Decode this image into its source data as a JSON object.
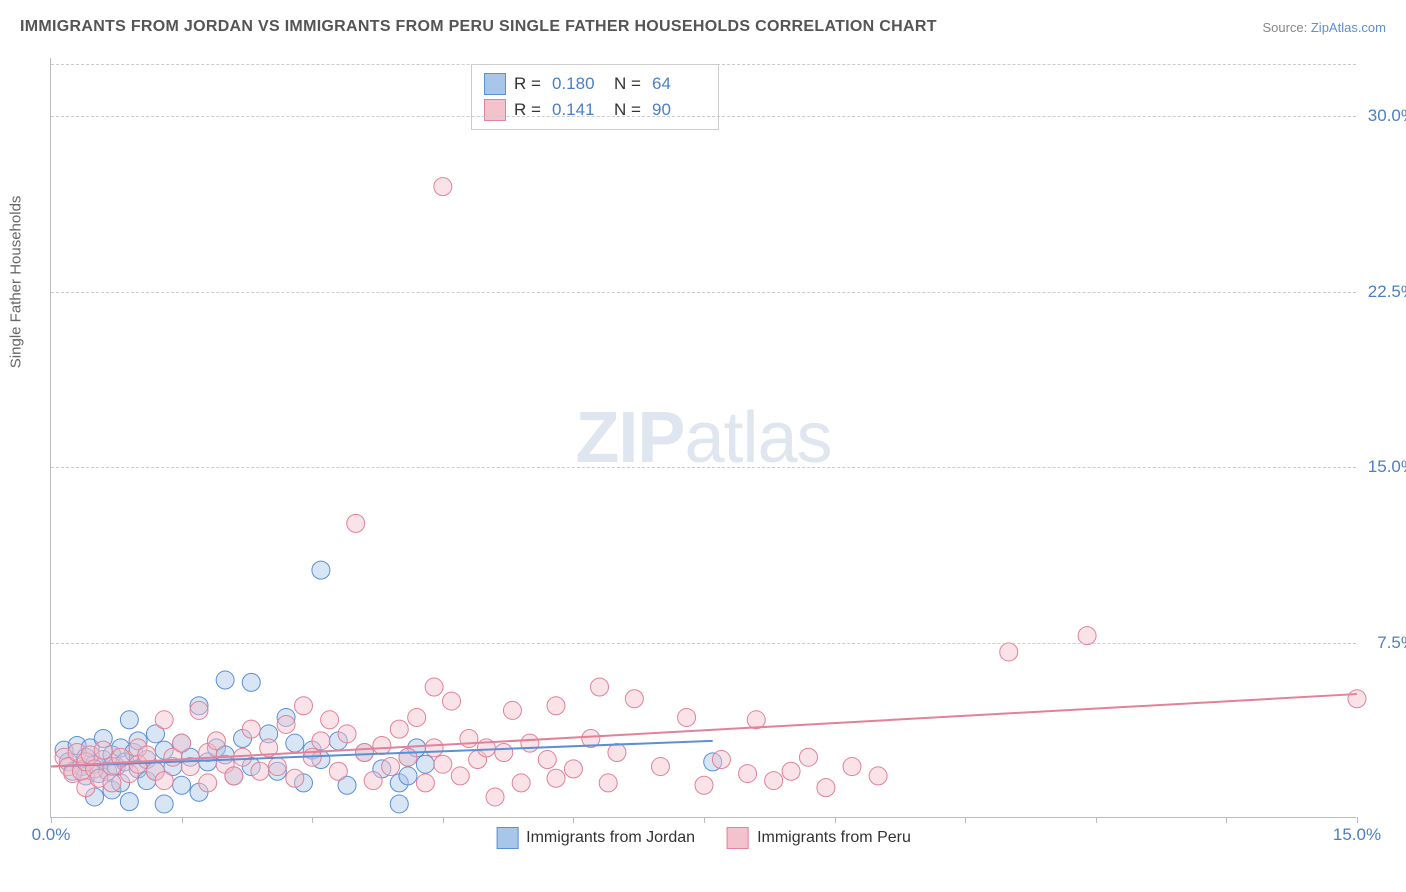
{
  "title": "IMMIGRANTS FROM JORDAN VS IMMIGRANTS FROM PERU SINGLE FATHER HOUSEHOLDS CORRELATION CHART",
  "source_label": "Source: ",
  "source_link": "ZipAtlas.com",
  "y_axis_title": "Single Father Households",
  "watermark_zip": "ZIP",
  "watermark_atlas": "atlas",
  "chart": {
    "type": "scatter",
    "background_color": "#ffffff",
    "grid_color": "#cccccc",
    "axis_color": "#bbbbbb",
    "xlim": [
      0,
      15
    ],
    "ylim": [
      0,
      32.5
    ],
    "y_ticks": [
      7.5,
      15.0,
      22.5,
      30.0
    ],
    "y_tick_labels": [
      "7.5%",
      "15.0%",
      "22.5%",
      "30.0%"
    ],
    "x_ticks": [
      0.0,
      1.5,
      3.0,
      4.5,
      6.0,
      7.5,
      9.0,
      10.5,
      12.0,
      13.5,
      15.0
    ],
    "x_labels_shown": {
      "first": "0.0%",
      "last": "15.0%"
    },
    "marker_radius": 9,
    "marker_opacity": 0.45,
    "series": [
      {
        "name": "Immigrants from Jordan",
        "fill": "#a8c6e8",
        "stroke": "#5b8fd6",
        "R": "0.180",
        "N": "64",
        "regression": {
          "x1": 0,
          "y1": 2.2,
          "x2": 7.6,
          "y2": 3.3
        },
        "points": [
          [
            0.15,
            2.9
          ],
          [
            0.2,
            2.4
          ],
          [
            0.25,
            2.0
          ],
          [
            0.3,
            3.1
          ],
          [
            0.35,
            2.2
          ],
          [
            0.4,
            2.6
          ],
          [
            0.4,
            1.8
          ],
          [
            0.45,
            3.0
          ],
          [
            0.5,
            2.3
          ],
          [
            0.5,
            0.9
          ],
          [
            0.55,
            1.9
          ],
          [
            0.6,
            2.5
          ],
          [
            0.6,
            3.4
          ],
          [
            0.65,
            2.0
          ],
          [
            0.7,
            2.7
          ],
          [
            0.7,
            1.2
          ],
          [
            0.75,
            2.2
          ],
          [
            0.8,
            3.0
          ],
          [
            0.8,
            1.5
          ],
          [
            0.85,
            2.4
          ],
          [
            0.9,
            4.2
          ],
          [
            0.9,
            0.7
          ],
          [
            0.95,
            2.8
          ],
          [
            1.0,
            2.1
          ],
          [
            1.0,
            3.3
          ],
          [
            1.1,
            1.6
          ],
          [
            1.1,
            2.5
          ],
          [
            1.2,
            2.0
          ],
          [
            1.2,
            3.6
          ],
          [
            1.3,
            0.6
          ],
          [
            1.3,
            2.9
          ],
          [
            1.4,
            2.2
          ],
          [
            1.5,
            3.2
          ],
          [
            1.5,
            1.4
          ],
          [
            1.6,
            2.6
          ],
          [
            1.7,
            4.8
          ],
          [
            1.7,
            1.1
          ],
          [
            1.8,
            2.4
          ],
          [
            1.9,
            3.0
          ],
          [
            2.0,
            5.9
          ],
          [
            2.0,
            2.7
          ],
          [
            2.1,
            1.8
          ],
          [
            2.2,
            3.4
          ],
          [
            2.3,
            5.8
          ],
          [
            2.3,
            2.2
          ],
          [
            2.5,
            3.6
          ],
          [
            2.6,
            2.0
          ],
          [
            2.7,
            4.3
          ],
          [
            2.8,
            3.2
          ],
          [
            2.9,
            1.5
          ],
          [
            3.0,
            2.9
          ],
          [
            3.1,
            10.6
          ],
          [
            3.1,
            2.5
          ],
          [
            3.3,
            3.3
          ],
          [
            3.4,
            1.4
          ],
          [
            3.6,
            2.8
          ],
          [
            3.8,
            2.1
          ],
          [
            4.0,
            0.6
          ],
          [
            4.0,
            1.5
          ],
          [
            4.1,
            1.8
          ],
          [
            4.1,
            2.6
          ],
          [
            4.2,
            3.0
          ],
          [
            4.3,
            2.3
          ],
          [
            7.6,
            2.4
          ]
        ]
      },
      {
        "name": "Immigrants from Peru",
        "fill": "#f4c2cd",
        "stroke": "#e28197",
        "R": "0.141",
        "N": "90",
        "regression": {
          "x1": 0,
          "y1": 2.2,
          "x2": 15.0,
          "y2": 5.3
        },
        "points": [
          [
            0.15,
            2.6
          ],
          [
            0.2,
            2.2
          ],
          [
            0.25,
            1.9
          ],
          [
            0.3,
            2.8
          ],
          [
            0.35,
            2.0
          ],
          [
            0.4,
            2.4
          ],
          [
            0.4,
            1.3
          ],
          [
            0.45,
            2.7
          ],
          [
            0.5,
            2.1
          ],
          [
            0.55,
            1.7
          ],
          [
            0.6,
            2.9
          ],
          [
            0.7,
            2.2
          ],
          [
            0.7,
            1.5
          ],
          [
            0.8,
            2.6
          ],
          [
            0.9,
            1.9
          ],
          [
            1.0,
            3.0
          ],
          [
            1.0,
            2.3
          ],
          [
            1.1,
            2.7
          ],
          [
            1.2,
            2.0
          ],
          [
            1.3,
            4.2
          ],
          [
            1.3,
            1.6
          ],
          [
            1.4,
            2.6
          ],
          [
            1.5,
            3.2
          ],
          [
            1.6,
            2.2
          ],
          [
            1.7,
            4.6
          ],
          [
            1.8,
            1.5
          ],
          [
            1.8,
            2.8
          ],
          [
            1.9,
            3.3
          ],
          [
            2.0,
            2.3
          ],
          [
            2.1,
            1.8
          ],
          [
            2.2,
            2.6
          ],
          [
            2.3,
            3.8
          ],
          [
            2.4,
            2.0
          ],
          [
            2.5,
            3.0
          ],
          [
            2.6,
            2.2
          ],
          [
            2.7,
            4.0
          ],
          [
            2.8,
            1.7
          ],
          [
            2.9,
            4.8
          ],
          [
            3.0,
            2.6
          ],
          [
            3.1,
            3.3
          ],
          [
            3.2,
            4.2
          ],
          [
            3.3,
            2.0
          ],
          [
            3.4,
            3.6
          ],
          [
            3.5,
            12.6
          ],
          [
            3.6,
            2.8
          ],
          [
            3.7,
            1.6
          ],
          [
            3.8,
            3.1
          ],
          [
            3.9,
            2.2
          ],
          [
            4.0,
            3.8
          ],
          [
            4.1,
            2.6
          ],
          [
            4.2,
            4.3
          ],
          [
            4.3,
            1.5
          ],
          [
            4.4,
            3.0
          ],
          [
            4.4,
            5.6
          ],
          [
            4.5,
            2.3
          ],
          [
            4.5,
            27.0
          ],
          [
            4.6,
            5.0
          ],
          [
            4.7,
            1.8
          ],
          [
            4.8,
            3.4
          ],
          [
            4.9,
            2.5
          ],
          [
            5.0,
            3.0
          ],
          [
            5.1,
            0.9
          ],
          [
            5.2,
            2.8
          ],
          [
            5.3,
            4.6
          ],
          [
            5.4,
            1.5
          ],
          [
            5.5,
            3.2
          ],
          [
            5.7,
            2.5
          ],
          [
            5.8,
            1.7
          ],
          [
            5.8,
            4.8
          ],
          [
            6.0,
            2.1
          ],
          [
            6.2,
            3.4
          ],
          [
            6.3,
            5.6
          ],
          [
            6.4,
            1.5
          ],
          [
            6.5,
            2.8
          ],
          [
            6.7,
            5.1
          ],
          [
            7.0,
            2.2
          ],
          [
            7.3,
            4.3
          ],
          [
            7.5,
            1.4
          ],
          [
            7.7,
            2.5
          ],
          [
            8.0,
            1.9
          ],
          [
            8.1,
            4.2
          ],
          [
            8.3,
            1.6
          ],
          [
            8.5,
            2.0
          ],
          [
            8.7,
            2.6
          ],
          [
            8.9,
            1.3
          ],
          [
            9.2,
            2.2
          ],
          [
            9.5,
            1.8
          ],
          [
            11.0,
            7.1
          ],
          [
            11.9,
            7.8
          ],
          [
            15.0,
            5.1
          ]
        ]
      }
    ],
    "legend_labels": {
      "R": "R =",
      "N": "N ="
    }
  }
}
